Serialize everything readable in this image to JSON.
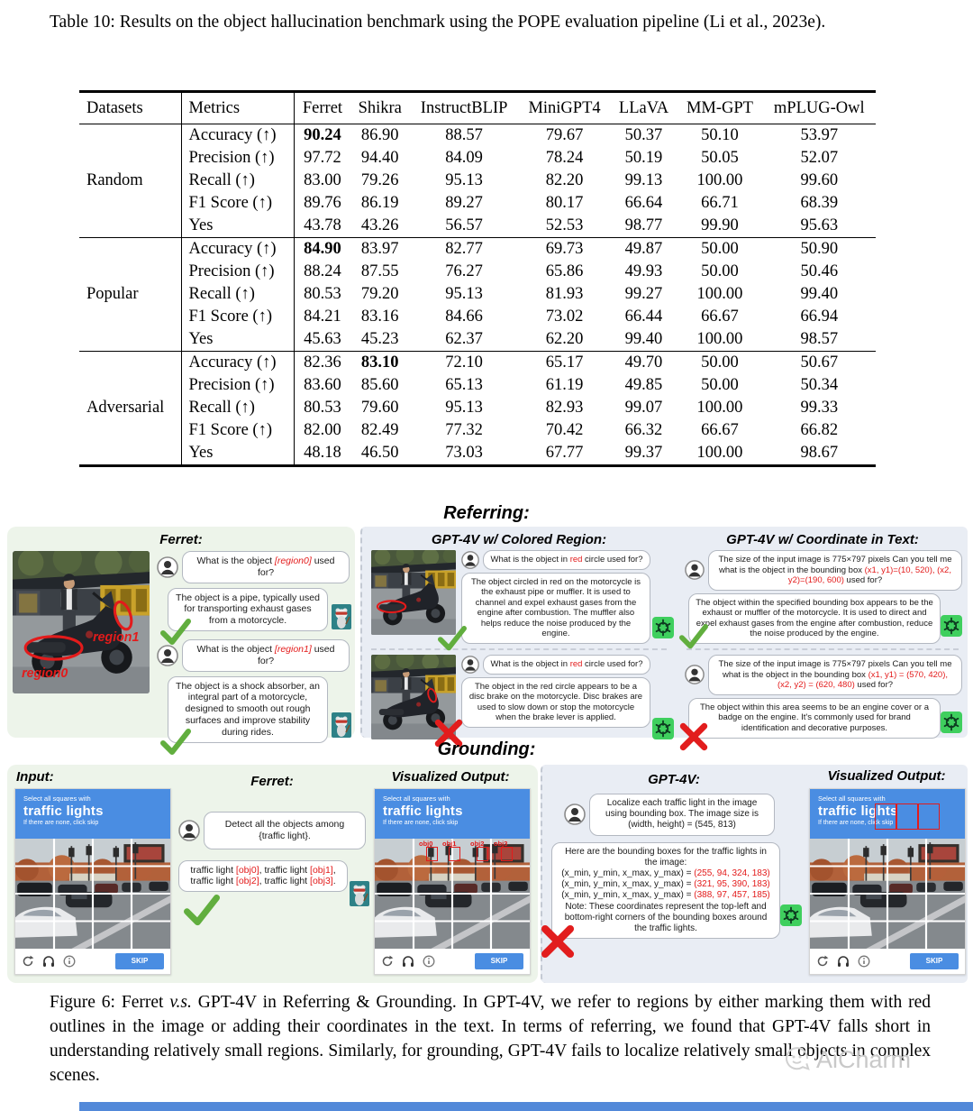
{
  "page": {
    "table_caption": "Table 10: Results on the object hallucination benchmark using the POPE evaluation pipeline (Li et al., 2023e).",
    "figure_caption": [
      {
        "t": "Figure 6: Ferret "
      },
      {
        "t": "v.s.",
        "i": true
      },
      {
        "t": " GPT-4V in Referring & Grounding. In GPT-4V, we refer to regions by either marking them with red outlines in the image or adding their coordinates in the text. In terms of referring, we found that GPT-4V falls short in understanding relatively small regions. Similarly, for grounding, GPT-4V fails to localize relatively small objects in complex scenes."
      }
    ]
  },
  "table": {
    "headers": [
      "Datasets",
      "Metrics",
      "Ferret",
      "Shikra",
      "InstructBLIP",
      "MiniGPT4",
      "LLaVA",
      "MM-GPT",
      "mPLUG-Owl"
    ],
    "groups": [
      {
        "dataset": "Random",
        "rows": [
          {
            "metric": "Accuracy (↑)",
            "values": [
              "90.24",
              "86.90",
              "88.57",
              "79.67",
              "50.37",
              "50.10",
              "53.97"
            ],
            "bold": [
              0
            ]
          },
          {
            "metric": "Precision (↑)",
            "values": [
              "97.72",
              "94.40",
              "84.09",
              "78.24",
              "50.19",
              "50.05",
              "52.07"
            ]
          },
          {
            "metric": "Recall (↑)",
            "values": [
              "83.00",
              "79.26",
              "95.13",
              "82.20",
              "99.13",
              "100.00",
              "99.60"
            ]
          },
          {
            "metric": "F1 Score (↑)",
            "values": [
              "89.76",
              "86.19",
              "89.27",
              "80.17",
              "66.64",
              "66.71",
              "68.39"
            ]
          },
          {
            "metric": "Yes",
            "values": [
              "43.78",
              "43.26",
              "56.57",
              "52.53",
              "98.77",
              "99.90",
              "95.63"
            ]
          }
        ]
      },
      {
        "dataset": "Popular",
        "rows": [
          {
            "metric": "Accuracy (↑)",
            "values": [
              "84.90",
              "83.97",
              "82.77",
              "69.73",
              "49.87",
              "50.00",
              "50.90"
            ],
            "bold": [
              0
            ]
          },
          {
            "metric": "Precision (↑)",
            "values": [
              "88.24",
              "87.55",
              "76.27",
              "65.86",
              "49.93",
              "50.00",
              "50.46"
            ]
          },
          {
            "metric": "Recall (↑)",
            "values": [
              "80.53",
              "79.20",
              "95.13",
              "81.93",
              "99.27",
              "100.00",
              "99.40"
            ]
          },
          {
            "metric": "F1 Score (↑)",
            "values": [
              "84.21",
              "83.16",
              "84.66",
              "73.02",
              "66.44",
              "66.67",
              "66.94"
            ]
          },
          {
            "metric": "Yes",
            "values": [
              "45.63",
              "45.23",
              "62.37",
              "62.20",
              "99.40",
              "100.00",
              "98.57"
            ]
          }
        ]
      },
      {
        "dataset": "Adversarial",
        "rows": [
          {
            "metric": "Accuracy (↑)",
            "values": [
              "82.36",
              "83.10",
              "72.10",
              "65.17",
              "49.70",
              "50.00",
              "50.67"
            ],
            "bold": [
              1
            ]
          },
          {
            "metric": "Precision (↑)",
            "values": [
              "83.60",
              "85.60",
              "65.13",
              "61.19",
              "49.85",
              "50.00",
              "50.34"
            ]
          },
          {
            "metric": "Recall (↑)",
            "values": [
              "80.53",
              "79.60",
              "95.13",
              "82.93",
              "99.07",
              "100.00",
              "99.33"
            ]
          },
          {
            "metric": "F1 Score (↑)",
            "values": [
              "82.00",
              "82.49",
              "77.32",
              "70.42",
              "66.32",
              "66.67",
              "66.82"
            ]
          },
          {
            "metric": "Yes",
            "values": [
              "48.18",
              "46.50",
              "73.03",
              "67.77",
              "99.37",
              "100.00",
              "98.67"
            ]
          }
        ]
      }
    ]
  },
  "figure": {
    "referring": {
      "title": "Referring:",
      "ferret_panel": {
        "title": "Ferret:",
        "region_labels": [
          "region0",
          "region1"
        ],
        "turns": [
          {
            "user": [
              {
                "t": "What is the object "
              },
              {
                "t": "[region0]",
                "c": "red",
                "i": true
              },
              {
                "t": " used for?"
              }
            ],
            "assistant": "The object is a pipe, typically used for transporting exhaust gases from a motorcycle."
          },
          {
            "user": [
              {
                "t": "What is the object "
              },
              {
                "t": "[region1]",
                "c": "red",
                "i": true
              },
              {
                "t": " used for?"
              }
            ],
            "assistant": "The object is a shock absorber, an integral part of a motorcycle, designed to smooth out rough surfaces and improve stability during rides."
          }
        ]
      },
      "colored_region_panel": {
        "title": "GPT-4V w/ Colored Region:",
        "examples": [
          {
            "user": [
              {
                "t": "What is the object in "
              },
              {
                "t": "red",
                "c": "red"
              },
              {
                "t": " circle used for?"
              }
            ],
            "assistant": "The object circled in red on the motorcycle is the exhaust pipe or muffler. It is used to channel and expel exhaust gases from the engine after combustion. The muffler also helps reduce the noise produced by the engine."
          },
          {
            "user": [
              {
                "t": "What is the object in "
              },
              {
                "t": "red",
                "c": "red"
              },
              {
                "t": " circle used for?"
              }
            ],
            "assistant": "The object in the red circle appears to be a disc brake on the motorcycle. Disc brakes are used to slow down or stop the motorcycle when the brake lever is applied."
          }
        ]
      },
      "coordinate_panel": {
        "title": "GPT-4V w/ Coordinate in Text:",
        "examples": [
          {
            "user": [
              {
                "t": "The size of the input image is 775×797 pixels Can you tell me what is the object in the bounding box "
              },
              {
                "t": "(x1, y1)=(10, 520), (x2, y2)=(190, 600)",
                "c": "red"
              },
              {
                "t": " used for?"
              }
            ],
            "assistant": "The object within the specified bounding box appears to be the exhaust or muffler of the motorcycle. It is used to direct and expel exhaust gases from the engine after combustion, reduce the noise produced by the engine."
          },
          {
            "user": [
              {
                "t": "The size of the input image is 775×797 pixels Can you tell me what is the object in the bounding box "
              },
              {
                "t": "(x1, y1) = (570, 420), (x2, y2) = (620, 480)",
                "c": "red"
              },
              {
                "t": " used for?"
              }
            ],
            "assistant": "The object within this area seems to be an engine cover or a badge on the engine. It's commonly used for brand identification and decorative purposes."
          }
        ]
      }
    },
    "grounding": {
      "title": "Grounding:",
      "input_title": "Input:",
      "ferret_title": "Ferret:",
      "visualized_title": "Visualized Output:",
      "gpt_title": "GPT-4V:",
      "visualized_title2": "Visualized Output:",
      "captcha": {
        "line1": "Select all squares with",
        "line2": "traffic lights",
        "line3": "If there are none, click skip",
        "skip": "SKIP"
      },
      "obj_labels": [
        "obj0",
        "obj1",
        "obj2",
        "obj3"
      ],
      "ferret": {
        "user": "Detect all the objects among\n{traffic light}.",
        "assistant": [
          {
            "t": "traffic light "
          },
          {
            "t": "[obj0]",
            "c": "red"
          },
          {
            "t": ", traffic light "
          },
          {
            "t": "[obj1]",
            "c": "red"
          },
          {
            "t": ",\ntraffic light "
          },
          {
            "t": "[obj2]",
            "c": "red"
          },
          {
            "t": ", traffic light "
          },
          {
            "t": "[obj3]",
            "c": "red"
          },
          {
            "t": "."
          }
        ]
      },
      "gpt": {
        "user": "Localize each traffic light in the image using bounding box. The image size is (width, height) = (545, 813)",
        "assistant": [
          {
            "t": "Here are the bounding boxes for the traffic lights in the image:\n(x_min, y_min, x_max, y_max) = "
          },
          {
            "t": "(255, 94, 324, 183)",
            "c": "red"
          },
          {
            "t": "\n(x_min, y_min, x_max, y_max) = "
          },
          {
            "t": "(321, 95, 390, 183)",
            "c": "red"
          },
          {
            "t": "\n(x_min, y_min, x_max, y_max) = "
          },
          {
            "t": "(388, 97, 457, 185)",
            "c": "red"
          },
          {
            "t": "\nNote: These coordinates represent the top-left and bottom-right corners of the bounding boxes around the traffic lights."
          }
        ]
      }
    }
  },
  "watermark": {
    "text": "AiCharm"
  }
}
